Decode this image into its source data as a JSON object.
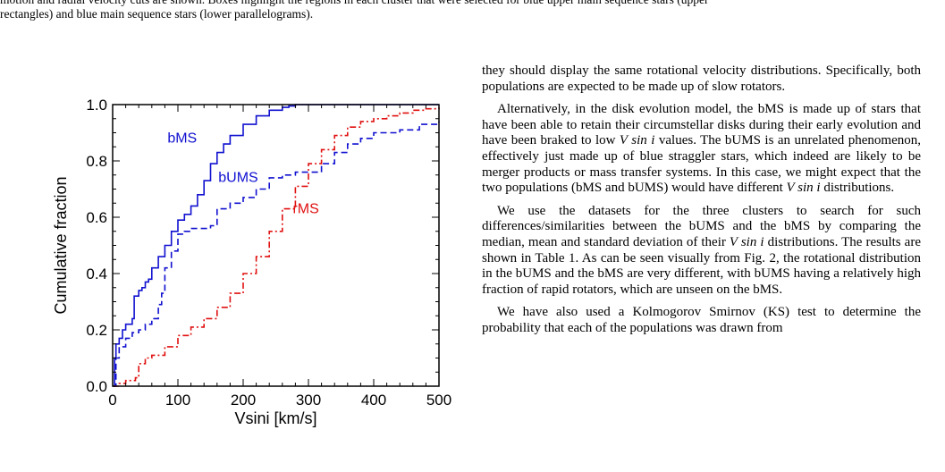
{
  "caption": {
    "line1": "motion and radial velocity cuts are shown. Boxes highlight the regions in each cluster that were selected for blue upper main sequence stars (upper",
    "line2": "rectangles) and blue main sequence stars (lower parallelograms)."
  },
  "chart_data": {
    "type": "line",
    "xlabel": "Vsini [km/s]",
    "ylabel": "Cumulative fraction",
    "xlim": [
      0,
      500
    ],
    "ylim": [
      0,
      1
    ],
    "xticks": [
      "0",
      "100",
      "200",
      "300",
      "400",
      "500"
    ],
    "yticks": [
      "0.0",
      "0.2",
      "0.4",
      "0.6",
      "0.8",
      "1.0"
    ],
    "annotations": [
      "bMS",
      "bUMS",
      "rMS"
    ],
    "series": [
      {
        "name": "bMS",
        "color": "#1010d0",
        "dash": "solid",
        "x": [
          0,
          3,
          5,
          10,
          15,
          20,
          25,
          30,
          33,
          40,
          45,
          50,
          55,
          60,
          70,
          80,
          90,
          100,
          110,
          120,
          130,
          140,
          150,
          160,
          170,
          180,
          200,
          220,
          240,
          260,
          270,
          280,
          300,
          350,
          420,
          500
        ],
        "y": [
          0.0,
          0.1,
          0.15,
          0.17,
          0.2,
          0.22,
          0.22,
          0.24,
          0.32,
          0.34,
          0.35,
          0.37,
          0.38,
          0.42,
          0.46,
          0.5,
          0.55,
          0.59,
          0.61,
          0.64,
          0.68,
          0.73,
          0.79,
          0.83,
          0.86,
          0.89,
          0.93,
          0.96,
          0.98,
          0.99,
          0.995,
          1.0,
          1.0,
          1.0,
          1.0,
          1.0
        ]
      },
      {
        "name": "bUMS",
        "color": "#1010d0",
        "dash": "dashed",
        "x": [
          0,
          5,
          10,
          20,
          30,
          40,
          50,
          60,
          70,
          75,
          80,
          90,
          100,
          110,
          120,
          130,
          150,
          160,
          180,
          200,
          220,
          240,
          260,
          280,
          300,
          320,
          340,
          360,
          380,
          400,
          440,
          470,
          500
        ],
        "y": [
          0.0,
          0.1,
          0.14,
          0.17,
          0.19,
          0.2,
          0.22,
          0.24,
          0.29,
          0.33,
          0.42,
          0.48,
          0.54,
          0.55,
          0.56,
          0.56,
          0.57,
          0.63,
          0.65,
          0.67,
          0.7,
          0.74,
          0.75,
          0.76,
          0.76,
          0.79,
          0.83,
          0.86,
          0.88,
          0.9,
          0.91,
          0.93,
          0.94
        ]
      },
      {
        "name": "rMS",
        "color": "#e01010",
        "dash": "dashdot",
        "x": [
          0,
          10,
          20,
          30,
          35,
          40,
          50,
          60,
          80,
          100,
          120,
          140,
          160,
          180,
          200,
          220,
          240,
          260,
          280,
          300,
          320,
          340,
          360,
          380,
          400,
          420,
          440,
          460,
          480,
          500
        ],
        "y": [
          0.0,
          0.01,
          0.02,
          0.02,
          0.03,
          0.08,
          0.1,
          0.11,
          0.14,
          0.18,
          0.21,
          0.24,
          0.28,
          0.33,
          0.4,
          0.46,
          0.55,
          0.63,
          0.71,
          0.79,
          0.84,
          0.89,
          0.92,
          0.94,
          0.95,
          0.96,
          0.97,
          0.98,
          0.985,
          0.99
        ]
      }
    ]
  },
  "body": {
    "p1": "they should display the same rotational velocity distributions. Specifically, both populations are expected to be made up of slow rotators.",
    "p2_a": "Alternatively, in the disk evolution model, the bMS is made up of stars that have been able to retain their circumstellar disks during their early evolution and have been braked to low ",
    "p2_b": " values. The bUMS is an unrelated phenomenon, effectively just made up of blue straggler stars, which indeed are likely to be merger products or mass transfer systems. In this case, we might expect that the two populations (bMS and bUMS) would have different ",
    "p2_c": " distributions.",
    "p3_a": "We use the datasets for the three clusters to search for such differences/similarities between the bUMS and the bMS by comparing the median, mean and standard deviation of their ",
    "p3_b": " distributions. The results are shown in Table 1. As can be seen visually from Fig. 2, the rotational distribution in the bUMS and the bMS are very different, with bUMS having a relatively high fraction of rapid rotators, which are unseen on the bMS.",
    "p4": "We have also used a Kolmogorov Smirnov (KS) test to determine the probability that each of the populations was drawn from",
    "vsini": "V sin i"
  }
}
